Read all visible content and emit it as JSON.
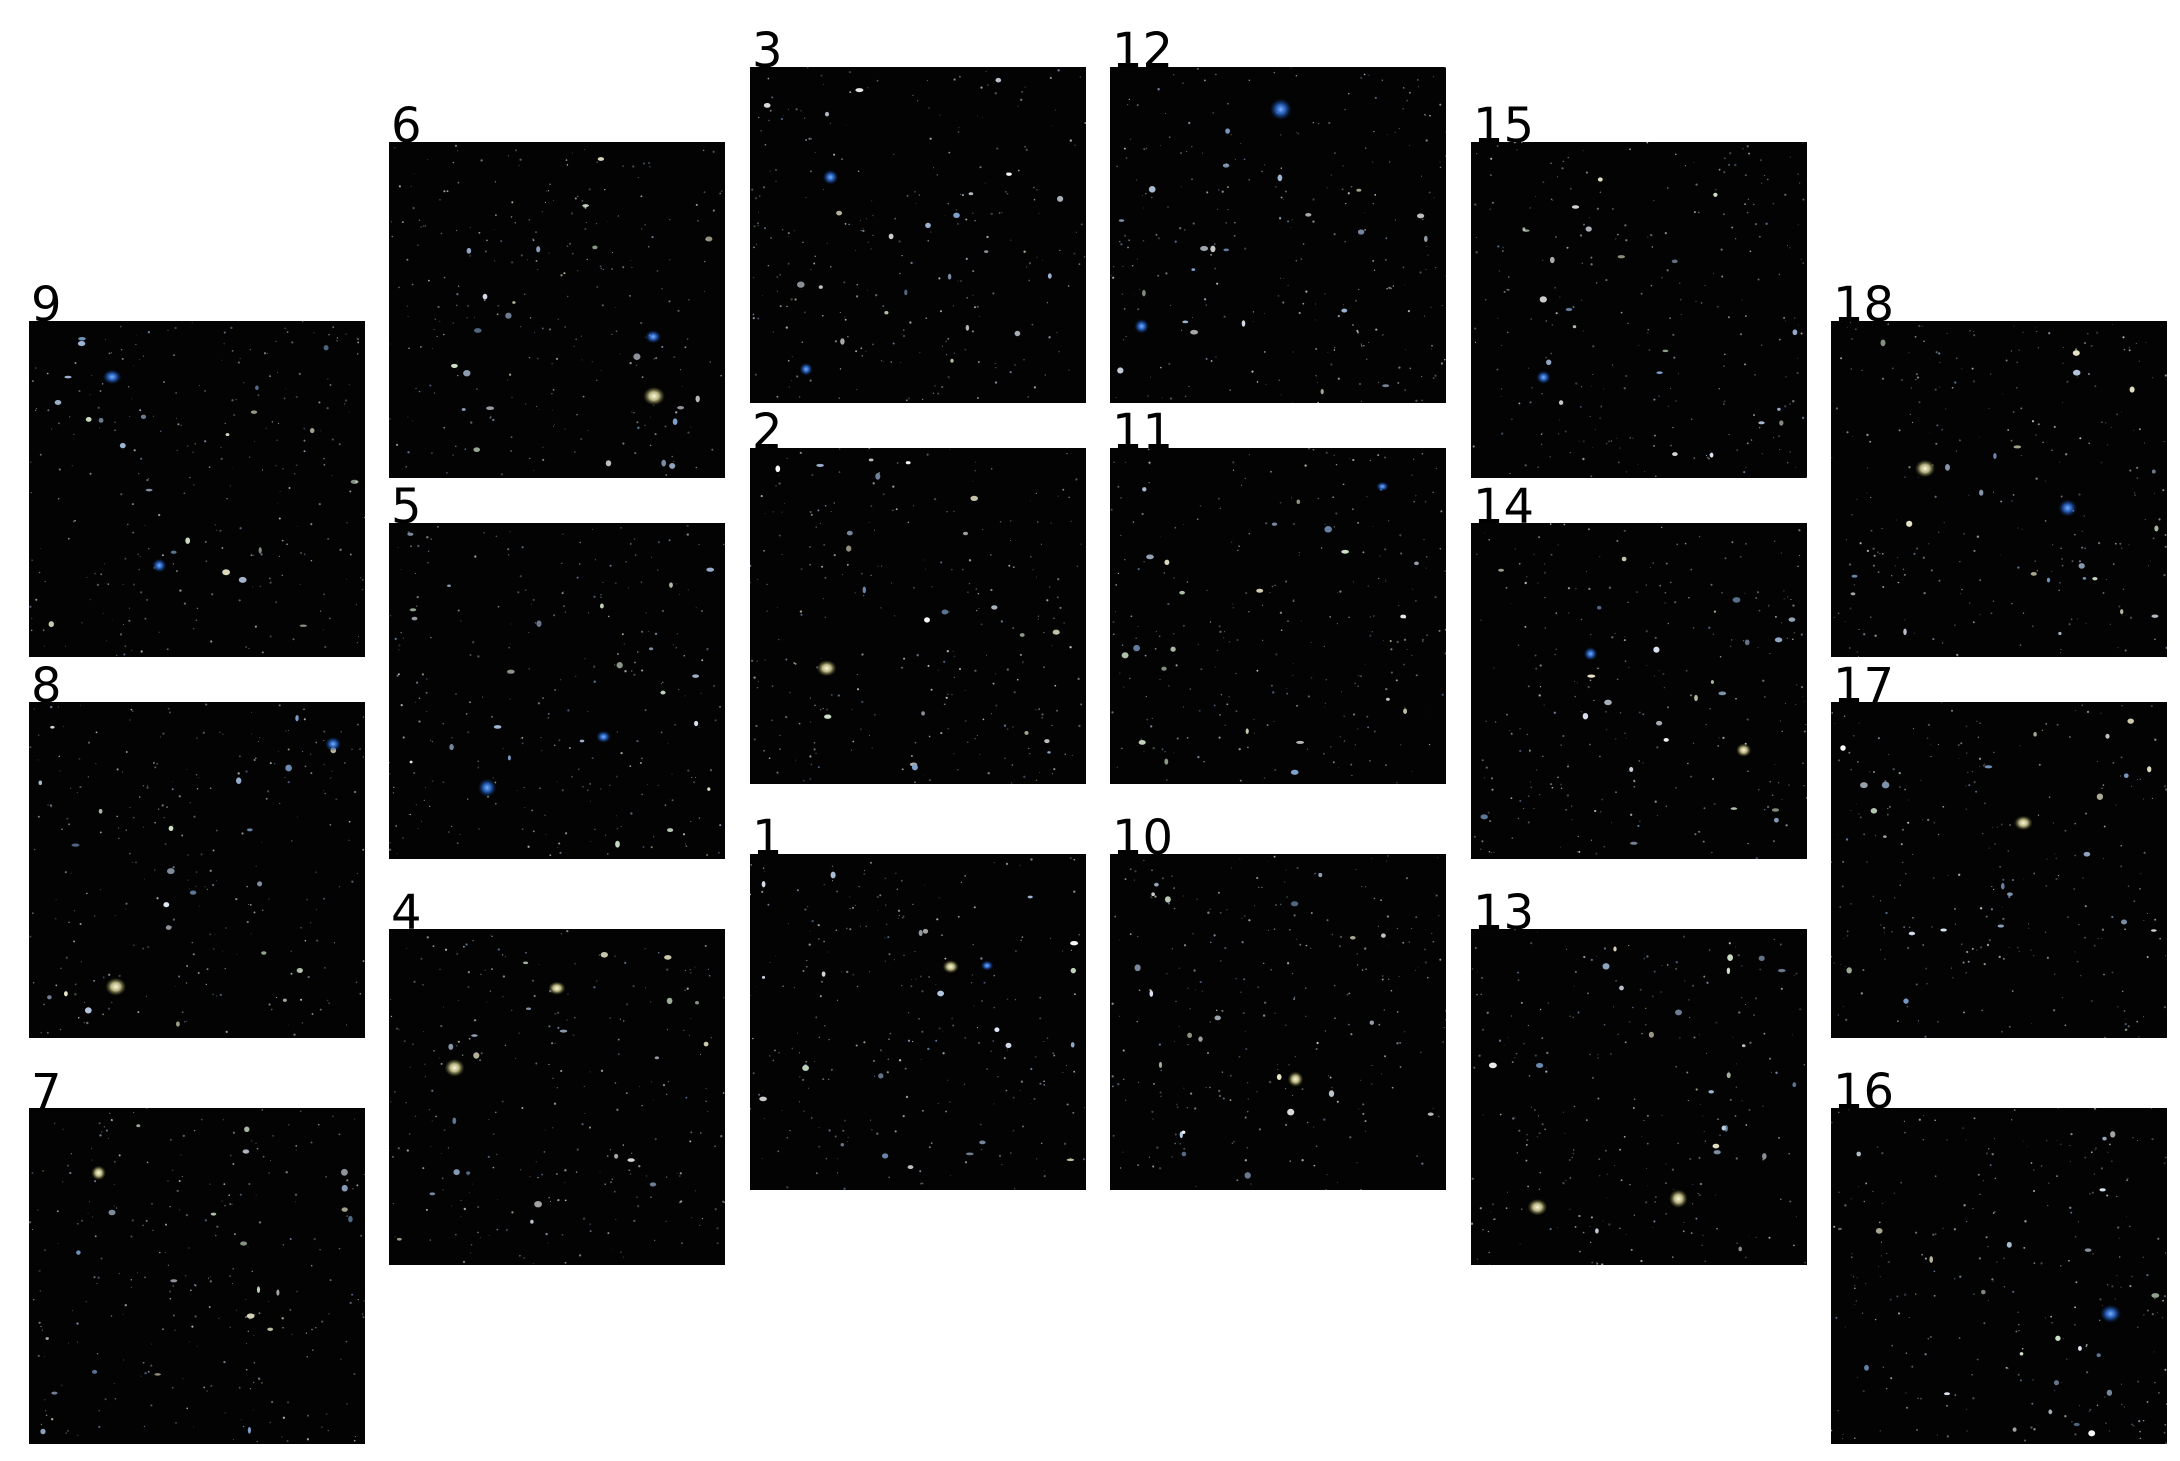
{
  "colors": {
    "background": "#ffffff",
    "sky": "#030303",
    "label": "#000000"
  },
  "tiles": [
    {
      "label": "9"
    },
    {
      "label": "8"
    },
    {
      "label": "7"
    },
    {
      "label": "6"
    },
    {
      "label": "5"
    },
    {
      "label": "4"
    },
    {
      "label": "3"
    },
    {
      "label": "2"
    },
    {
      "label": "1"
    },
    {
      "label": "12"
    },
    {
      "label": "11"
    },
    {
      "label": "10"
    },
    {
      "label": "15"
    },
    {
      "label": "14"
    },
    {
      "label": "13"
    },
    {
      "label": "18"
    },
    {
      "label": "17"
    },
    {
      "label": "16"
    }
  ]
}
